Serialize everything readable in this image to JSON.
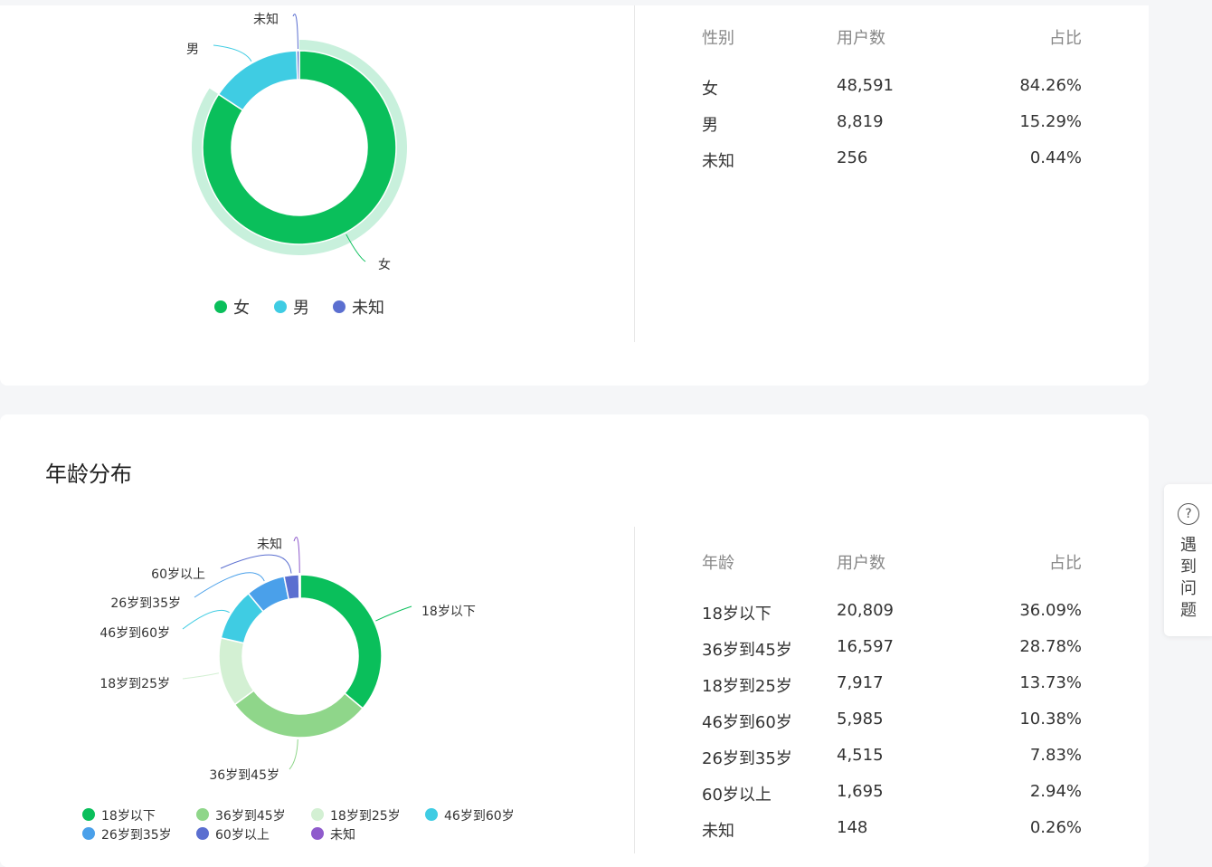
{
  "gender": {
    "chart_data": {
      "type": "pie",
      "categories": [
        "女",
        "男",
        "未知"
      ],
      "values": [
        48591,
        8819,
        256
      ],
      "colors": [
        "#0abf5b",
        "#3fcce3",
        "#5b6fd0"
      ],
      "highlight_color": "#c8f0dc",
      "legend": "bottom"
    },
    "table": {
      "headers": [
        "性别",
        "用户数",
        "占比"
      ],
      "rows": [
        [
          "女",
          "48,591",
          "84.26%"
        ],
        [
          "男",
          "8,819",
          "15.29%"
        ],
        [
          "未知",
          "256",
          "0.44%"
        ]
      ]
    }
  },
  "age": {
    "title": "年龄分布",
    "chart_data": {
      "type": "pie",
      "categories": [
        "18岁以下",
        "36岁到45岁",
        "18岁到25岁",
        "46岁到60岁",
        "26岁到35岁",
        "60岁以上",
        "未知"
      ],
      "values": [
        20809,
        16597,
        7917,
        5985,
        4515,
        1695,
        148
      ],
      "colors": [
        "#0abf5b",
        "#8fd68a",
        "#d3f0d3",
        "#3fcce3",
        "#4aa0ea",
        "#5b6fd0",
        "#8f5bcc"
      ],
      "legend": "bottom"
    },
    "table": {
      "headers": [
        "年龄",
        "用户数",
        "占比"
      ],
      "rows": [
        [
          "18岁以下",
          "20,809",
          "36.09%"
        ],
        [
          "36岁到45岁",
          "16,597",
          "28.78%"
        ],
        [
          "18岁到25岁",
          "7,917",
          "13.73%"
        ],
        [
          "46岁到60岁",
          "5,985",
          "10.38%"
        ],
        [
          "26岁到35岁",
          "4,515",
          "7.83%"
        ],
        [
          "60岁以上",
          "1,695",
          "2.94%"
        ],
        [
          "未知",
          "148",
          "0.26%"
        ]
      ]
    }
  },
  "help": {
    "icon": "question-circle-icon",
    "icon_glyph": "?",
    "label": "遇到问题"
  }
}
